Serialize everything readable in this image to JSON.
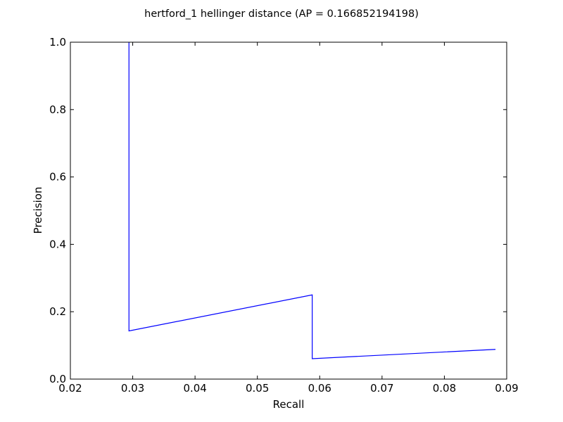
{
  "chart_data": {
    "type": "line",
    "title": "hertford_1 hellinger distance  (AP = 0.166852194198)",
    "xlabel": "Recall",
    "ylabel": "Precision",
    "xlim": [
      0.02,
      0.09
    ],
    "ylim": [
      0.0,
      1.0
    ],
    "xticks": [
      "0.02",
      "0.03",
      "0.04",
      "0.05",
      "0.06",
      "0.07",
      "0.08",
      "0.09"
    ],
    "yticks": [
      "0.0",
      "0.2",
      "0.4",
      "0.6",
      "0.8",
      "1.0"
    ],
    "grid": false,
    "series": [
      {
        "color": "#0000ff",
        "x": [
          0.0294,
          0.0294,
          0.0588,
          0.0588,
          0.0882
        ],
        "y": [
          1.0,
          0.143,
          0.25,
          0.0606,
          0.0882
        ]
      }
    ]
  }
}
